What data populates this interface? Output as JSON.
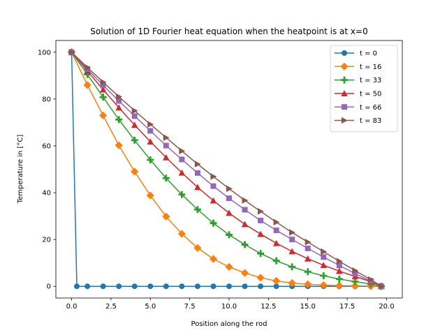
{
  "chart_data": {
    "type": "line",
    "title": "Solution of 1D Fourier heat equation when the heatpoint is at x=0",
    "xlabel": "Position along the rod",
    "ylabel": "Temperature in [°C]",
    "xlim": [
      -1.0,
      21.0
    ],
    "ylim": [
      -5.0,
      105.0
    ],
    "xticks": [
      0.0,
      2.5,
      5.0,
      7.5,
      10.0,
      12.5,
      15.0,
      17.5,
      20.0
    ],
    "xtick_labels": [
      "0.0",
      "2.5",
      "5.0",
      "7.5",
      "10.0",
      "12.5",
      "15.0",
      "17.5",
      "20.0"
    ],
    "yticks": [
      0,
      20,
      40,
      60,
      80,
      100
    ],
    "ytick_labels": [
      "0",
      "20",
      "40",
      "60",
      "80",
      "100"
    ],
    "grid": false,
    "legend_position": "top-right",
    "series": [
      {
        "name": "t = 0",
        "color": "#1f77b4",
        "marker": "circle",
        "x": [
          0,
          0.33,
          1,
          2,
          3,
          4,
          5,
          6,
          7,
          8,
          9,
          10,
          11,
          12,
          13,
          14,
          15,
          16,
          17,
          18,
          19,
          19.67
        ],
        "y": [
          100,
          0,
          0,
          0,
          0,
          0,
          0,
          0,
          0,
          0,
          0,
          0,
          0,
          0,
          0,
          0,
          0,
          0,
          0,
          0,
          0,
          0
        ]
      },
      {
        "name": "t = 16",
        "color": "#ff7f0e",
        "marker": "diamond",
        "x": [
          0,
          1,
          2,
          3,
          4,
          5,
          6,
          7,
          8,
          9,
          10,
          11,
          12,
          13,
          14,
          15,
          16,
          17,
          18,
          19,
          19.67
        ],
        "y": [
          100,
          86,
          73,
          60.2,
          49,
          38.8,
          29.8,
          22.4,
          16.4,
          11.7,
          8.3,
          5.7,
          3.7,
          2.3,
          1.4,
          0.9,
          0.5,
          0.3,
          0.2,
          0.1,
          0
        ]
      },
      {
        "name": "t = 33",
        "color": "#2ca02c",
        "marker": "plus",
        "x": [
          0,
          1,
          2,
          3,
          4,
          5,
          6,
          7,
          8,
          9,
          10,
          11,
          12,
          13,
          14,
          15,
          16,
          17,
          18,
          19,
          19.67
        ],
        "y": [
          100,
          90.5,
          80.8,
          71.2,
          62.4,
          54,
          46.2,
          39.2,
          32.8,
          27,
          22,
          17.8,
          14,
          10.9,
          8.3,
          6.2,
          4.5,
          3.1,
          2,
          1,
          0
        ]
      },
      {
        "name": "t = 50",
        "color": "#d62728",
        "marker": "triangle-up",
        "x": [
          0,
          1,
          2,
          3,
          4,
          5,
          6,
          7,
          8,
          9,
          10,
          11,
          12,
          13,
          14,
          15,
          16,
          17,
          18,
          19,
          19.67
        ],
        "y": [
          100,
          92,
          84,
          76.3,
          68.9,
          61.8,
          55,
          48.5,
          42.3,
          36.6,
          31.3,
          26.5,
          22.3,
          18.4,
          14.9,
          11.8,
          9,
          6.5,
          4.2,
          2,
          0
        ]
      },
      {
        "name": "t = 66",
        "color": "#9467bd",
        "marker": "square",
        "x": [
          0,
          1,
          2,
          3,
          4,
          5,
          6,
          7,
          8,
          9,
          10,
          11,
          12,
          13,
          14,
          15,
          16,
          17,
          18,
          19,
          19.67
        ],
        "y": [
          100,
          92.8,
          85.8,
          79.2,
          72.7,
          66.4,
          60.1,
          54.2,
          48.4,
          42.8,
          37.6,
          32.7,
          28.1,
          23.9,
          20,
          16.2,
          12.5,
          8.9,
          5.4,
          2.3,
          0
        ]
      },
      {
        "name": "t = 83",
        "color": "#8c564b",
        "marker": "triangle-right",
        "x": [
          0,
          1,
          2,
          3,
          4,
          5,
          6,
          7,
          8,
          9,
          10,
          11,
          12,
          13,
          14,
          15,
          16,
          17,
          18,
          19,
          19.67
        ],
        "y": [
          100,
          93.5,
          87.2,
          81,
          75,
          69.2,
          63.5,
          57.8,
          52.2,
          46.9,
          41.7,
          36.7,
          32,
          27.4,
          23,
          18.9,
          14.8,
          10.7,
          6.7,
          2.9,
          0
        ]
      }
    ]
  }
}
